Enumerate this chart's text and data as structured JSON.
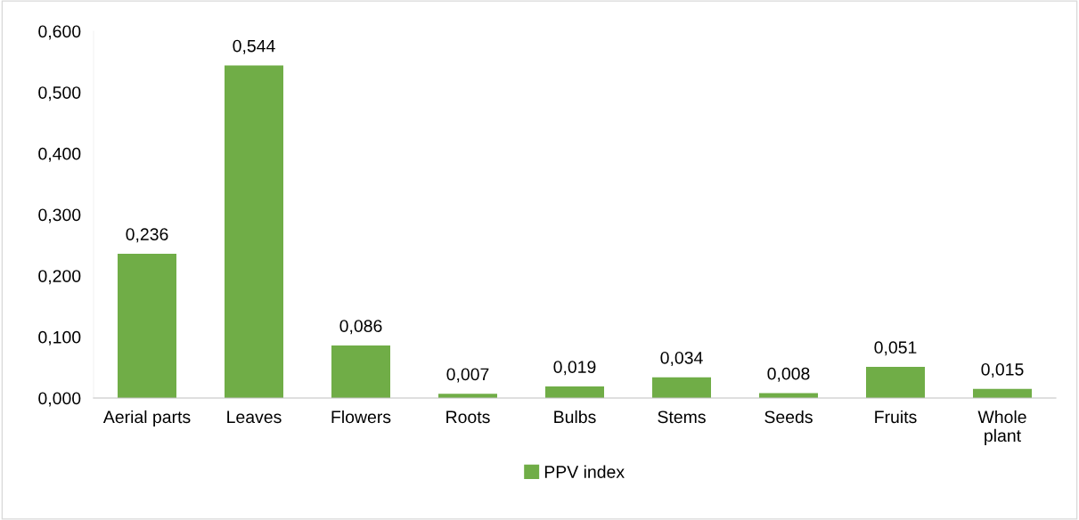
{
  "chart_data": {
    "type": "bar",
    "categories": [
      "Aerial parts",
      "Leaves",
      "Flowers",
      "Roots",
      "Bulbs",
      "Stems",
      "Seeds",
      "Fruits",
      "Whole\nplant"
    ],
    "series": [
      {
        "name": "PPV index",
        "color": "#70ad47",
        "values": [
          0.236,
          0.544,
          0.086,
          0.007,
          0.019,
          0.034,
          0.008,
          0.051,
          0.015
        ],
        "value_labels": [
          "0,236",
          "0,544",
          "0,086",
          "0,007",
          "0,019",
          "0,034",
          "0,008",
          "0,051",
          "0,015"
        ]
      }
    ],
    "ylim": [
      0,
      0.6
    ],
    "yticks": [
      {
        "value": 0,
        "label": "0,000"
      },
      {
        "value": 0.1,
        "label": "0,100"
      },
      {
        "value": 0.2,
        "label": "0,200"
      },
      {
        "value": 0.3,
        "label": "0,300"
      },
      {
        "value": 0.4,
        "label": "0,400"
      },
      {
        "value": 0.5,
        "label": "0,500"
      },
      {
        "value": 0.6,
        "label": "0,600"
      }
    ],
    "grid": false,
    "legend": "bottom"
  }
}
